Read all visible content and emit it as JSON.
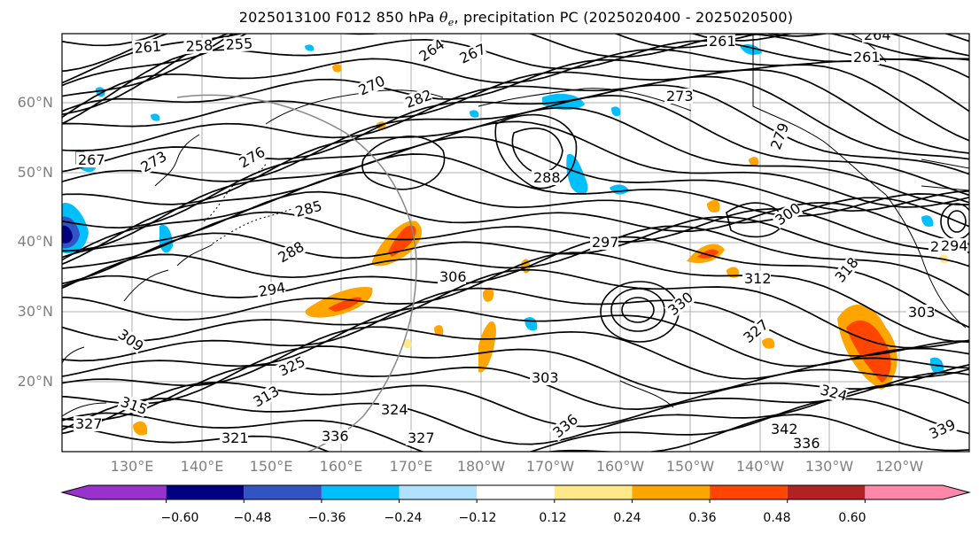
{
  "title": {
    "prefix": "2025013100 F012 850 hPa ",
    "theta": "θ",
    "theta_sub": "e",
    "suffix": ", precipitation PC (2025020400 - 2025020500)"
  },
  "latitude_labels": [
    "60°N",
    "50°N",
    "40°N",
    "30°N",
    "20°N"
  ],
  "longitude_labels": [
    "130°E",
    "140°E",
    "150°E",
    "160°E",
    "170°E",
    "180°W",
    "170°W",
    "160°W",
    "150°W",
    "140°W",
    "130°W",
    "120°W"
  ],
  "contour_labels": [
    "261",
    "258",
    "255",
    "264",
    "267",
    "261",
    "264",
    "261",
    "273",
    "270",
    "282",
    "276",
    "273",
    "267",
    "288",
    "279",
    "300",
    "285",
    "288",
    "297",
    "294",
    "306",
    "312",
    "294",
    "303",
    "309",
    "330",
    "327",
    "318",
    "303",
    "324",
    "315",
    "313",
    "336",
    "342",
    "336",
    "339",
    "336",
    "327",
    "327",
    "325",
    "324",
    "321",
    "294"
  ],
  "colorbar": {
    "colors": [
      "#9932CC",
      "#000080",
      "#3153C4",
      "#00BFFF",
      "#B0E2FF",
      "#FFFFFF",
      "#FFE88A",
      "#FFA500",
      "#FF4500",
      "#B22222",
      "#FF88AA"
    ],
    "tick_labels": [
      "−0.60",
      "−0.48",
      "−0.36",
      "−0.24",
      "−0.12",
      "0.12",
      "0.24",
      "0.36",
      "0.48",
      "0.60"
    ]
  }
}
